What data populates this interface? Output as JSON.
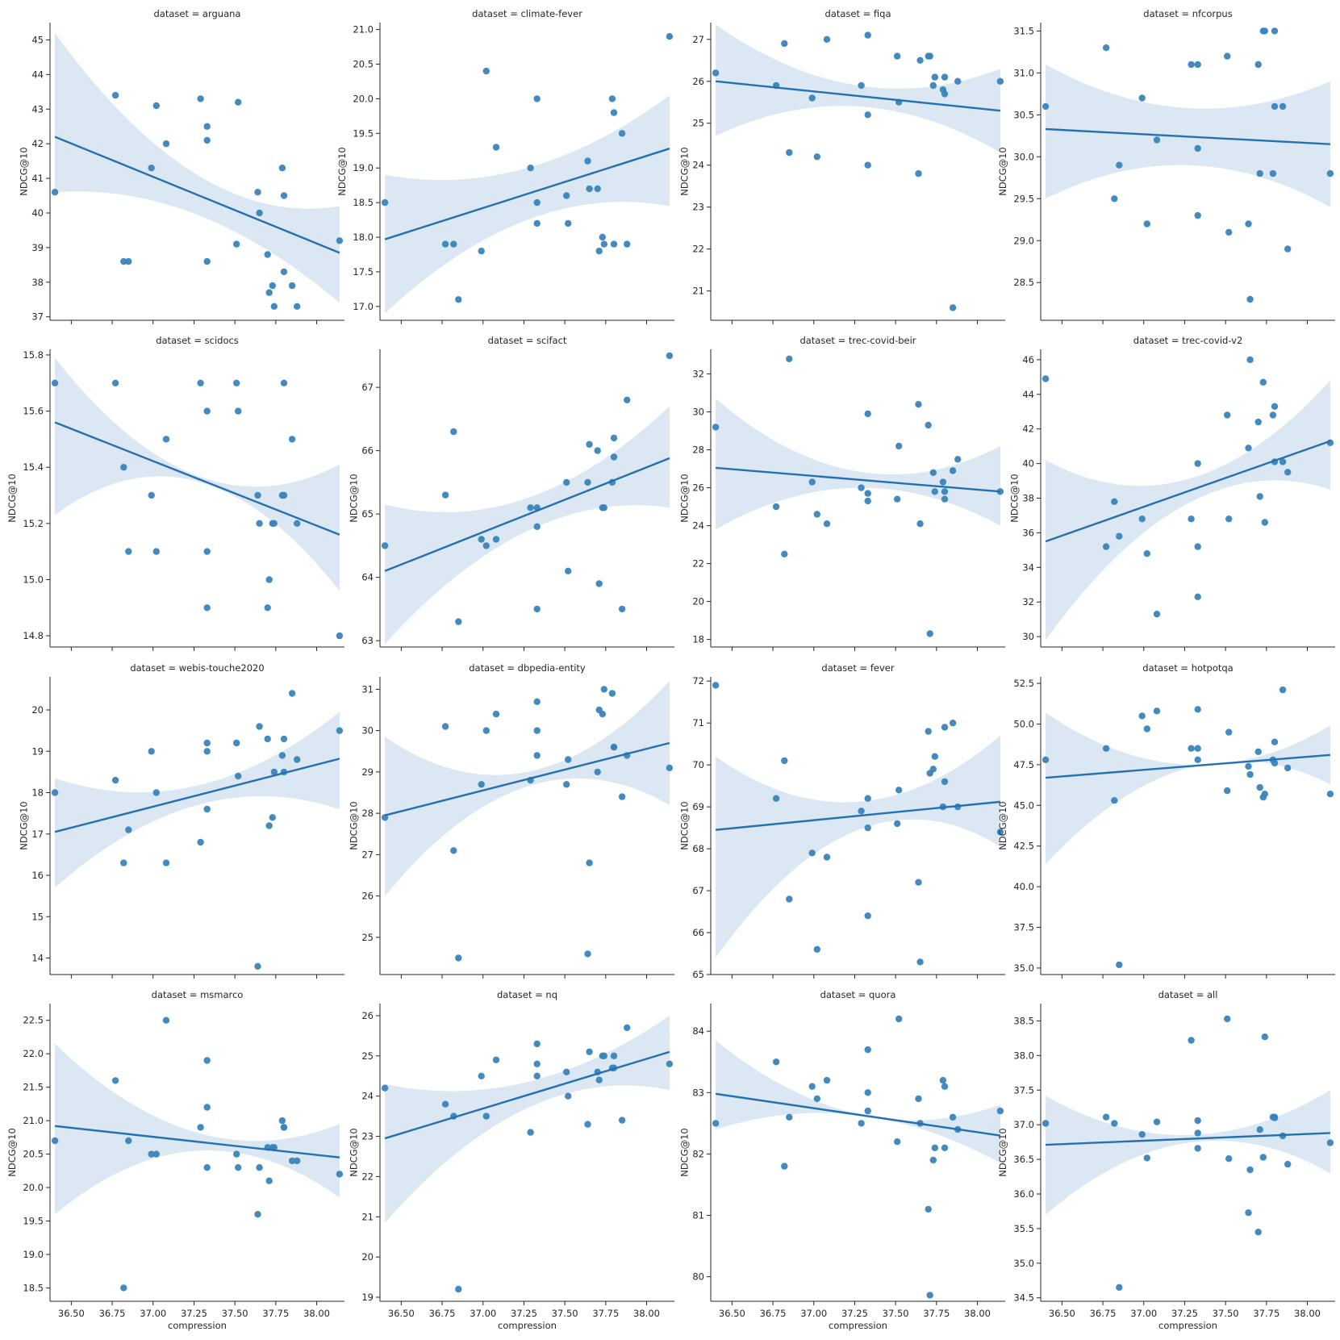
{
  "chart_data": {
    "type": "scatter",
    "xlabel": "compression",
    "ylabel": "NDCG@10",
    "title_prefix": "dataset = ",
    "xlim": [
      36.37,
      38.17
    ],
    "xticks": [
      36.5,
      36.75,
      37.0,
      37.25,
      37.5,
      37.75,
      38.0
    ],
    "xtick_labels": [
      "36.50",
      "36.75",
      "37.00",
      "37.25",
      "37.50",
      "37.75",
      "38.00"
    ],
    "x": [
      36.4,
      36.77,
      36.82,
      36.85,
      36.99,
      37.02,
      37.08,
      37.29,
      37.33,
      37.33,
      37.33,
      37.51,
      37.52,
      37.64,
      37.65,
      37.7,
      37.71,
      37.73,
      37.74,
      37.79,
      37.8,
      37.8,
      37.85,
      37.88,
      38.14
    ],
    "panels": [
      {
        "dataset": "arguana",
        "ylim": [
          36.9,
          45.5
        ],
        "yticks": [
          37,
          38,
          39,
          40,
          41,
          42,
          43,
          44,
          45
        ],
        "ytick_labels": [
          "37",
          "38",
          "39",
          "40",
          "41",
          "42",
          "43",
          "44",
          "45"
        ],
        "y": [
          40.6,
          43.4,
          38.6,
          38.6,
          41.3,
          43.1,
          42.0,
          43.3,
          42.5,
          42.1,
          38.6,
          39.1,
          43.2,
          40.6,
          40.0,
          38.8,
          37.7,
          37.9,
          37.3,
          41.3,
          40.5,
          38.3,
          37.9,
          37.3,
          39.2
        ],
        "fit": [
          42.2,
          38.85
        ],
        "ci_lo": [
          40.6,
          37.4
        ],
        "ci_mid": [
          40.2,
          39.95
        ],
        "ci_hi": [
          45.2,
          40.2
        ]
      },
      {
        "dataset": "climate-fever",
        "ylim": [
          16.8,
          21.1
        ],
        "yticks": [
          17.0,
          17.5,
          18.0,
          18.5,
          19.0,
          19.5,
          20.0,
          20.5,
          21.0
        ],
        "ytick_labels": [
          "17.0",
          "17.5",
          "18.0",
          "18.5",
          "19.0",
          "19.5",
          "20.0",
          "20.5",
          "21.0"
        ],
        "y": [
          18.5,
          17.9,
          17.9,
          17.1,
          17.8,
          20.4,
          19.3,
          19.0,
          20.0,
          18.5,
          18.2,
          18.6,
          18.2,
          19.1,
          18.7,
          18.7,
          17.8,
          18.0,
          17.9,
          20.0,
          19.8,
          17.9,
          19.5,
          17.9,
          20.9
        ],
        "fit": [
          17.97,
          19.28
        ],
        "ci_lo": [
          16.9,
          18.45
        ],
        "ci_mid": [
          18.25,
          18.9
        ],
        "ci_hi": [
          18.9,
          20.05
        ]
      },
      {
        "dataset": "fiqa",
        "ylim": [
          20.3,
          27.4
        ],
        "yticks": [
          21,
          22,
          23,
          24,
          25,
          26,
          27
        ],
        "ytick_labels": [
          "21",
          "22",
          "23",
          "24",
          "25",
          "26",
          "27"
        ],
        "y": [
          26.2,
          25.9,
          26.9,
          24.3,
          25.6,
          24.2,
          27.0,
          25.9,
          25.2,
          27.1,
          24.0,
          26.6,
          25.5,
          23.8,
          26.5,
          26.6,
          26.6,
          25.9,
          26.1,
          25.8,
          26.1,
          25.7,
          20.6,
          26.0,
          26.0
        ],
        "fit": [
          26.0,
          25.3
        ],
        "ci_lo": [
          24.7,
          24.3
        ],
        "ci_mid": [
          25.4,
          25.5
        ],
        "ci_hi": [
          27.35,
          26.3
        ]
      },
      {
        "dataset": "nfcorpus",
        "ylim": [
          28.05,
          31.6
        ],
        "yticks": [
          28.5,
          29.0,
          29.5,
          30.0,
          30.5,
          31.0,
          31.5
        ],
        "ytick_labels": [
          "28.5",
          "29.0",
          "29.5",
          "30.0",
          "30.5",
          "31.0",
          "31.5"
        ],
        "y": [
          30.6,
          31.3,
          29.5,
          29.9,
          30.7,
          29.2,
          30.2,
          31.1,
          31.1,
          30.1,
          29.3,
          31.2,
          29.1,
          29.2,
          28.3,
          31.1,
          29.8,
          31.5,
          31.5,
          29.8,
          31.5,
          30.6,
          30.6,
          28.9,
          29.8
        ],
        "fit": [
          30.33,
          30.15
        ],
        "ci_lo": [
          29.5,
          29.4
        ],
        "ci_mid": [
          29.9,
          29.9
        ],
        "ci_hi": [
          31.1,
          30.9
        ]
      },
      {
        "dataset": "scidocs",
        "ylim": [
          14.76,
          15.82
        ],
        "yticks": [
          14.8,
          15.0,
          15.2,
          15.4,
          15.6,
          15.8
        ],
        "ytick_labels": [
          "14.8",
          "15.0",
          "15.2",
          "15.4",
          "15.6",
          "15.8"
        ],
        "y": [
          15.7,
          15.7,
          15.4,
          15.1,
          15.3,
          15.1,
          15.5,
          15.7,
          15.6,
          15.1,
          14.9,
          15.7,
          15.6,
          15.3,
          15.2,
          14.9,
          15.0,
          15.2,
          15.2,
          15.3,
          15.3,
          15.7,
          15.5,
          15.2,
          14.8
        ],
        "fit": [
          15.56,
          15.16
        ],
        "ci_lo": [
          15.23,
          14.96
        ],
        "ci_mid": [
          15.35,
          15.35
        ],
        "ci_hi": [
          15.79,
          15.41
        ]
      },
      {
        "dataset": "scifact",
        "ylim": [
          62.9,
          67.6
        ],
        "yticks": [
          63,
          64,
          65,
          66,
          67
        ],
        "ytick_labels": [
          "63",
          "64",
          "65",
          "66",
          "67"
        ],
        "y": [
          64.5,
          65.3,
          66.3,
          63.3,
          64.6,
          64.5,
          64.6,
          65.1,
          65.1,
          64.8,
          63.5,
          65.5,
          64.1,
          65.5,
          66.1,
          66.0,
          63.9,
          65.1,
          65.1,
          65.5,
          65.9,
          66.2,
          63.5,
          66.8,
          67.5
        ],
        "fit": [
          64.1,
          65.88
        ],
        "ci_lo": [
          62.95,
          65.1
        ],
        "ci_mid": [
          64.75,
          65.25
        ],
        "ci_hi": [
          65.15,
          66.7
        ]
      },
      {
        "dataset": "trec-covid-beir",
        "ylim": [
          17.6,
          33.3
        ],
        "yticks": [
          18,
          20,
          22,
          24,
          26,
          28,
          30,
          32
        ],
        "ytick_labels": [
          "18",
          "20",
          "22",
          "24",
          "26",
          "28",
          "30",
          "32"
        ],
        "y": [
          29.2,
          25.0,
          22.5,
          32.8,
          26.3,
          24.6,
          24.1,
          26.0,
          29.9,
          25.7,
          25.3,
          25.4,
          28.2,
          30.4,
          24.1,
          29.3,
          18.3,
          26.8,
          25.8,
          26.3,
          25.4,
          25.8,
          26.9,
          27.5,
          25.8
        ],
        "fit": [
          27.05,
          25.8
        ],
        "ci_lo": [
          23.8,
          24.0
        ],
        "ci_mid": [
          26.0,
          26.1
        ],
        "ci_hi": [
          30.7,
          28.2
        ]
      },
      {
        "dataset": "trec-covid-v2",
        "ylim": [
          29.4,
          46.6
        ],
        "yticks": [
          30,
          32,
          34,
          36,
          38,
          40,
          42,
          44,
          46
        ],
        "ytick_labels": [
          "30",
          "32",
          "34",
          "36",
          "38",
          "40",
          "42",
          "44",
          "46"
        ],
        "y": [
          44.9,
          35.2,
          37.8,
          35.8,
          36.8,
          34.8,
          31.3,
          36.8,
          40.0,
          35.2,
          32.3,
          42.8,
          36.8,
          40.9,
          46.0,
          42.4,
          38.1,
          44.7,
          36.6,
          42.8,
          40.1,
          43.3,
          40.1,
          39.5,
          41.2
        ],
        "fit": [
          35.5,
          41.3
        ],
        "ci_lo": [
          29.8,
          38.5
        ],
        "ci_mid": [
          37.7,
          38.9
        ],
        "ci_hi": [
          40.2,
          44.8
        ]
      },
      {
        "dataset": "webis-touche2020",
        "ylim": [
          13.6,
          20.8
        ],
        "yticks": [
          14,
          15,
          16,
          17,
          18,
          19,
          20
        ],
        "ytick_labels": [
          "14",
          "15",
          "16",
          "17",
          "18",
          "19",
          "20"
        ],
        "y": [
          18.0,
          18.3,
          16.3,
          17.1,
          19.0,
          18.0,
          16.3,
          16.8,
          19.0,
          19.2,
          17.6,
          19.2,
          18.4,
          13.8,
          19.6,
          19.3,
          17.2,
          17.4,
          18.5,
          18.9,
          18.5,
          19.3,
          20.4,
          18.8,
          19.5
        ],
        "fit": [
          17.05,
          18.82
        ],
        "ci_lo": [
          15.7,
          17.6
        ],
        "ci_mid": [
          17.7,
          17.9
        ],
        "ci_hi": [
          18.35,
          19.95
        ]
      },
      {
        "dataset": "dbpedia-entity",
        "ylim": [
          24.1,
          31.3
        ],
        "yticks": [
          25,
          26,
          27,
          28,
          29,
          30,
          31
        ],
        "ytick_labels": [
          "25",
          "26",
          "27",
          "28",
          "29",
          "30",
          "31"
        ],
        "y": [
          27.9,
          30.1,
          27.1,
          24.5,
          28.7,
          30.0,
          30.4,
          28.8,
          29.4,
          30.0,
          30.7,
          28.7,
          29.3,
          24.6,
          26.8,
          29.0,
          30.5,
          30.4,
          31.0,
          30.9,
          29.6,
          29.6,
          28.4,
          29.4,
          29.1
        ],
        "fit": [
          27.95,
          29.7
        ],
        "ci_lo": [
          26.0,
          28.2
        ],
        "ci_mid": [
          28.7,
          29.0
        ],
        "ci_hi": [
          29.85,
          31.2
        ]
      },
      {
        "dataset": "fever",
        "ylim": [
          65.0,
          72.1
        ],
        "yticks": [
          65,
          66,
          67,
          68,
          69,
          70,
          71,
          72
        ],
        "ytick_labels": [
          "65",
          "66",
          "67",
          "68",
          "69",
          "70",
          "71",
          "72"
        ],
        "y": [
          71.9,
          69.2,
          70.1,
          66.8,
          67.9,
          65.6,
          67.8,
          68.9,
          69.2,
          68.5,
          66.4,
          68.6,
          69.4,
          67.2,
          65.3,
          70.8,
          69.8,
          69.9,
          70.2,
          69.0,
          70.9,
          69.6,
          71.0,
          69.0,
          68.4
        ],
        "fit": [
          68.45,
          69.12
        ],
        "ci_lo": [
          65.4,
          68.05
        ],
        "ci_mid": [
          68.45,
          68.85
        ],
        "ci_hi": [
          70.2,
          70.7
        ]
      },
      {
        "dataset": "hotpotqa",
        "ylim": [
          34.6,
          52.9
        ],
        "yticks": [
          35.0,
          37.5,
          40.0,
          42.5,
          45.0,
          47.5,
          50.0,
          52.5
        ],
        "ytick_labels": [
          "35.0",
          "37.5",
          "40.0",
          "42.5",
          "45.0",
          "47.5",
          "50.0",
          "52.5"
        ],
        "y": [
          47.8,
          48.5,
          45.3,
          35.2,
          50.5,
          49.7,
          50.8,
          48.5,
          48.5,
          47.8,
          50.9,
          45.9,
          49.5,
          47.4,
          46.9,
          48.3,
          46.1,
          45.5,
          45.7,
          47.8,
          47.6,
          48.9,
          52.1,
          47.3,
          45.7
        ],
        "fit": [
          46.7,
          48.1
        ],
        "ci_lo": [
          41.4,
          46.3
        ],
        "ci_mid": [
          47.3,
          47.45
        ],
        "ci_hi": [
          50.7,
          49.9
        ]
      },
      {
        "dataset": "msmarco",
        "ylim": [
          18.3,
          22.75
        ],
        "yticks": [
          18.5,
          19.0,
          19.5,
          20.0,
          20.5,
          21.0,
          21.5,
          22.0,
          22.5
        ],
        "ytick_labels": [
          "18.5",
          "19.0",
          "19.5",
          "20.0",
          "20.5",
          "21.0",
          "21.5",
          "22.0",
          "22.5"
        ],
        "y": [
          20.7,
          21.6,
          18.5,
          20.7,
          20.5,
          20.5,
          22.5,
          20.9,
          21.9,
          21.2,
          20.3,
          20.5,
          20.3,
          19.6,
          20.3,
          20.6,
          20.1,
          20.6,
          20.6,
          21.0,
          20.9,
          20.9,
          20.4,
          20.4,
          20.2
        ],
        "fit": [
          20.92,
          20.45
        ],
        "ci_lo": [
          19.6,
          19.85
        ],
        "ci_mid": [
          20.55,
          20.65
        ],
        "ci_hi": [
          22.15,
          20.95
        ]
      },
      {
        "dataset": "nq",
        "ylim": [
          18.9,
          26.3
        ],
        "yticks": [
          19,
          20,
          21,
          22,
          23,
          24,
          25,
          26
        ],
        "ytick_labels": [
          "19",
          "20",
          "21",
          "22",
          "23",
          "24",
          "25",
          "26"
        ],
        "y": [
          24.2,
          23.8,
          23.5,
          19.2,
          24.5,
          23.5,
          24.9,
          23.1,
          25.3,
          24.8,
          24.5,
          24.6,
          24.0,
          23.3,
          25.1,
          24.6,
          24.4,
          25.0,
          25.0,
          24.7,
          24.7,
          25.0,
          23.4,
          25.7,
          24.8
        ],
        "fit": [
          22.95,
          25.1
        ],
        "ci_lo": [
          20.85,
          24.15
        ],
        "ci_mid": [
          24.25,
          24.35
        ],
        "ci_hi": [
          24.3,
          26.0
        ]
      },
      {
        "dataset": "quora",
        "ylim": [
          79.6,
          84.45
        ],
        "yticks": [
          80,
          81,
          82,
          83,
          84
        ],
        "ytick_labels": [
          "80",
          "81",
          "82",
          "83",
          "84"
        ],
        "y": [
          82.5,
          83.5,
          81.8,
          82.6,
          83.1,
          82.9,
          83.2,
          82.5,
          83.7,
          83.0,
          82.7,
          82.2,
          84.2,
          82.9,
          82.5,
          81.1,
          79.7,
          81.9,
          82.1,
          83.2,
          83.1,
          82.1,
          82.6,
          82.4,
          82.7
        ],
        "fit": [
          82.98,
          82.3
        ],
        "ci_lo": [
          82.4,
          81.85
        ],
        "ci_mid": [
          82.65,
          82.65
        ],
        "ci_hi": [
          83.85,
          82.8
        ]
      },
      {
        "dataset": "all",
        "ylim": [
          34.45,
          38.75
        ],
        "yticks": [
          34.5,
          35.0,
          35.5,
          36.0,
          36.5,
          37.0,
          37.5,
          38.0,
          38.5
        ],
        "ytick_labels": [
          "34.5",
          "35.0",
          "35.5",
          "36.0",
          "36.5",
          "37.0",
          "37.5",
          "38.0",
          "38.5"
        ],
        "y": [
          37.02,
          37.11,
          37.02,
          34.65,
          36.86,
          36.52,
          37.04,
          38.22,
          36.66,
          37.06,
          36.88,
          38.53,
          36.51,
          35.73,
          36.35,
          35.45,
          36.93,
          36.53,
          38.27,
          37.11,
          37.1,
          37.11,
          36.84,
          36.43,
          36.74
        ],
        "fit": [
          36.71,
          36.88
        ],
        "ci_lo": [
          35.7,
          36.3
        ],
        "ci_mid": [
          36.75,
          36.85
        ],
        "ci_hi": [
          37.42,
          37.5
        ]
      }
    ]
  }
}
